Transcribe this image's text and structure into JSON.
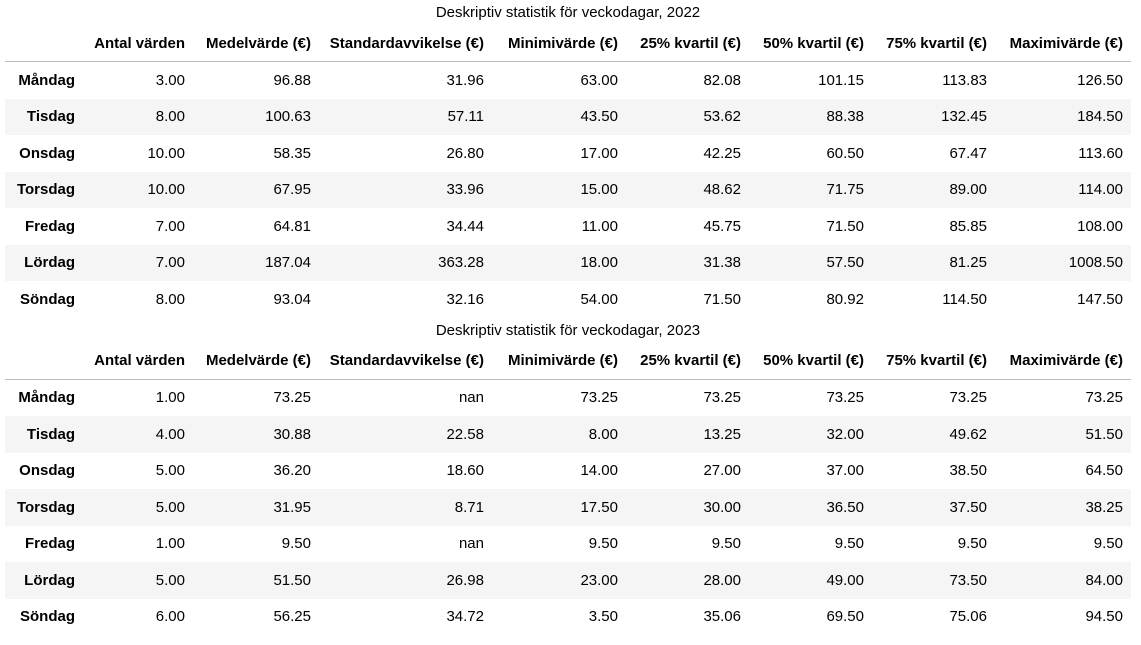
{
  "tables": [
    {
      "caption": "Deskriptiv statistik för veckodagar, 2022",
      "columns": [
        "Antal värden",
        "Medelvärde (€)",
        "Standardavvikelse (€)",
        "Minimivärde (€)",
        "25% kvartil (€)",
        "50% kvartil (€)",
        "75% kvartil (€)",
        "Maximivärde (€)"
      ],
      "rows": [
        {
          "label": "Måndag",
          "cells": [
            "3.00",
            "96.88",
            "31.96",
            "63.00",
            "82.08",
            "101.15",
            "113.83",
            "126.50"
          ]
        },
        {
          "label": "Tisdag",
          "cells": [
            "8.00",
            "100.63",
            "57.11",
            "43.50",
            "53.62",
            "88.38",
            "132.45",
            "184.50"
          ]
        },
        {
          "label": "Onsdag",
          "cells": [
            "10.00",
            "58.35",
            "26.80",
            "17.00",
            "42.25",
            "60.50",
            "67.47",
            "113.60"
          ]
        },
        {
          "label": "Torsdag",
          "cells": [
            "10.00",
            "67.95",
            "33.96",
            "15.00",
            "48.62",
            "71.75",
            "89.00",
            "114.00"
          ]
        },
        {
          "label": "Fredag",
          "cells": [
            "7.00",
            "64.81",
            "34.44",
            "11.00",
            "45.75",
            "71.50",
            "85.85",
            "108.00"
          ]
        },
        {
          "label": "Lördag",
          "cells": [
            "7.00",
            "187.04",
            "363.28",
            "18.00",
            "31.38",
            "57.50",
            "81.25",
            "1008.50"
          ]
        },
        {
          "label": "Söndag",
          "cells": [
            "8.00",
            "93.04",
            "32.16",
            "54.00",
            "71.50",
            "80.92",
            "114.50",
            "147.50"
          ]
        }
      ]
    },
    {
      "caption": "Deskriptiv statistik för veckodagar, 2023",
      "columns": [
        "Antal värden",
        "Medelvärde (€)",
        "Standardavvikelse (€)",
        "Minimivärde (€)",
        "25% kvartil (€)",
        "50% kvartil (€)",
        "75% kvartil (€)",
        "Maximivärde (€)"
      ],
      "rows": [
        {
          "label": "Måndag",
          "cells": [
            "1.00",
            "73.25",
            "nan",
            "73.25",
            "73.25",
            "73.25",
            "73.25",
            "73.25"
          ]
        },
        {
          "label": "Tisdag",
          "cells": [
            "4.00",
            "30.88",
            "22.58",
            "8.00",
            "13.25",
            "32.00",
            "49.62",
            "51.50"
          ]
        },
        {
          "label": "Onsdag",
          "cells": [
            "5.00",
            "36.20",
            "18.60",
            "14.00",
            "27.00",
            "37.00",
            "38.50",
            "64.50"
          ]
        },
        {
          "label": "Torsdag",
          "cells": [
            "5.00",
            "31.95",
            "8.71",
            "17.50",
            "30.00",
            "36.50",
            "37.50",
            "38.25"
          ]
        },
        {
          "label": "Fredag",
          "cells": [
            "1.00",
            "9.50",
            "nan",
            "9.50",
            "9.50",
            "9.50",
            "9.50",
            "9.50"
          ]
        },
        {
          "label": "Lördag",
          "cells": [
            "5.00",
            "51.50",
            "26.98",
            "23.00",
            "28.00",
            "49.00",
            "73.50",
            "84.00"
          ]
        },
        {
          "label": "Söndag",
          "cells": [
            "6.00",
            "56.25",
            "34.72",
            "3.50",
            "35.06",
            "69.50",
            "75.06",
            "94.50"
          ]
        }
      ]
    }
  ]
}
